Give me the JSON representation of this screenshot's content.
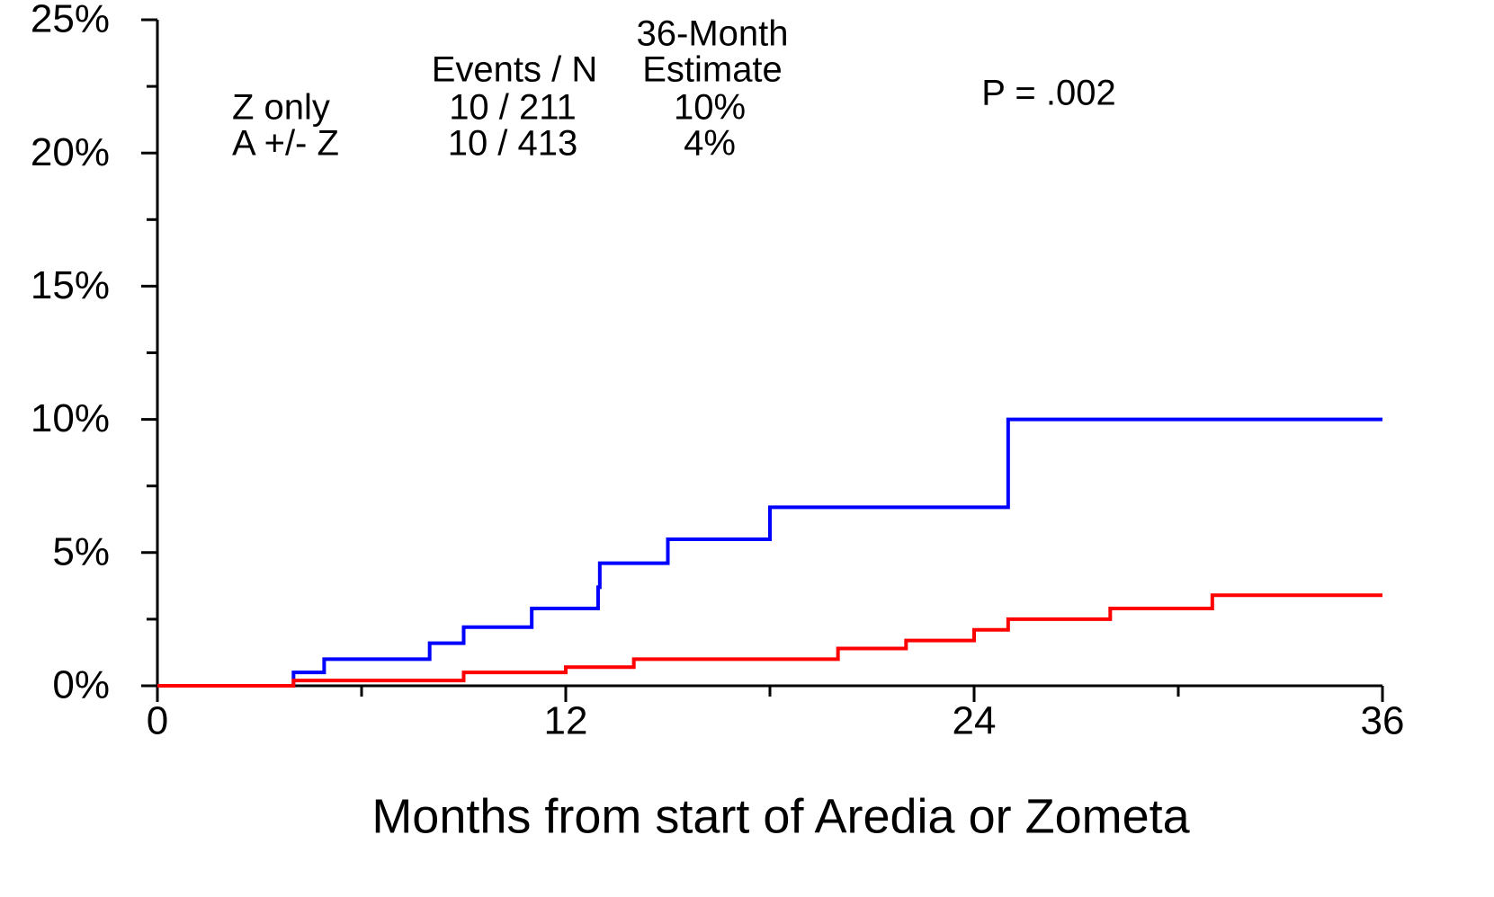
{
  "chart_data": {
    "type": "step",
    "x_label": "Months from start of Aredia or Zometa",
    "xlim": [
      0,
      36
    ],
    "xticks": [
      0,
      12,
      24,
      36
    ],
    "xminor": [
      6,
      18,
      30
    ],
    "ylim": [
      0,
      25
    ],
    "yticks": [
      {
        "value": 0,
        "label": "0%"
      },
      {
        "value": 5,
        "label": "5%"
      },
      {
        "value": 10,
        "label": "10%"
      },
      {
        "value": 15,
        "label": "15%"
      },
      {
        "value": 20,
        "label": "20%"
      },
      {
        "value": 25,
        "label": "25%"
      }
    ],
    "yminor": [
      2.5,
      7.5,
      12.5,
      17.5,
      22.5
    ],
    "table_header": {
      "events": "Events / N",
      "estimate": [
        "36-Month",
        "Estimate"
      ]
    },
    "p_value": "P = .002",
    "series": [
      {
        "name": "Z only",
        "color": "#0000ff",
        "events": "10 / 211",
        "estimate": "10%",
        "x": [
          0,
          4.0,
          4.9,
          8.0,
          9.0,
          11.0,
          12.95,
          13.0,
          15.0,
          18.0,
          25.0,
          36
        ],
        "values": [
          0,
          0.5,
          1.0,
          1.6,
          2.2,
          2.9,
          3.7,
          4.6,
          5.5,
          6.7,
          10.0,
          10.0
        ]
      },
      {
        "name": "A +/- Z",
        "color": "#ff0000",
        "events": "10 / 413",
        "estimate": "4%",
        "x": [
          0,
          4.0,
          9.0,
          12.0,
          14.0,
          20.0,
          22.0,
          24.0,
          25.0,
          28.0,
          31.0,
          36
        ],
        "values": [
          0,
          0.2,
          0.5,
          0.7,
          1.0,
          1.4,
          1.7,
          2.1,
          2.5,
          2.9,
          3.4,
          3.4
        ]
      }
    ]
  }
}
